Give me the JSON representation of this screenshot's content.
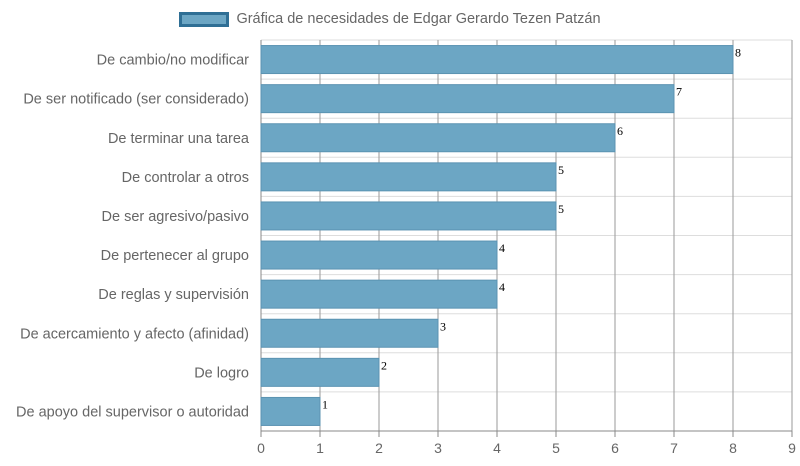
{
  "chart_data": {
    "type": "bar",
    "orientation": "horizontal",
    "categories": [
      "De cambio/no modificar",
      "De ser notificado (ser considerado)",
      "De terminar una tarea",
      "De controlar a otros",
      "De ser agresivo/pasivo",
      "De pertenecer al grupo",
      "De reglas y supervisión",
      "De acercamiento y afecto (afinidad)",
      "De logro",
      "De apoyo del supervisor o autoridad"
    ],
    "series": [
      {
        "name": "Gráfica de necesidades de Edgar Gerardo Tezen Patzán",
        "values": [
          8,
          7,
          6,
          5,
          5,
          4,
          4,
          3,
          2,
          1
        ]
      }
    ],
    "data_labels": [
      "8",
      "7",
      "6",
      "5",
      "5",
      "4",
      "4",
      "3",
      "2",
      "1"
    ],
    "x_ticks": [
      "0",
      "1",
      "2",
      "3",
      "4",
      "5",
      "6",
      "7",
      "8",
      "9"
    ],
    "xlim": [
      0,
      9
    ],
    "grid": true,
    "legend_position": "top-center",
    "colors": {
      "bar_fill": "#6ca6c4",
      "bar_stroke": "#5b93b2",
      "legend_border": "#2f6f95",
      "grid": "#dddddd",
      "axis": "#888888",
      "label_text": "#666666",
      "value_text": "#000000"
    }
  }
}
